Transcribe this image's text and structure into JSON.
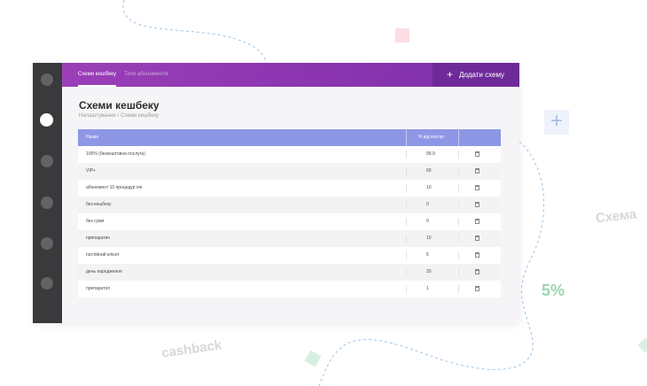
{
  "topbar": {
    "tabs": [
      {
        "label": "Схеми кешбеку",
        "active": true
      },
      {
        "label": "Типи абонементів",
        "active": false
      }
    ],
    "add_button_label": "Додати схему",
    "gradient_colors": [
      "#9a3fb7",
      "#7b2fa8"
    ]
  },
  "page": {
    "title": "Схеми кешбеку",
    "breadcrumbs": [
      "Налаштування",
      "Схеми кешбеку"
    ],
    "breadcrumb_separator": "/"
  },
  "table": {
    "headers": {
      "name": "Назва",
      "percent": "% від послуг"
    },
    "header_color": "#8e97e6",
    "rows": [
      {
        "name": "100% (безкоштовна послуга)",
        "percent": "99.9"
      },
      {
        "name": "VIP+",
        "percent": "60"
      },
      {
        "name": "абонемент 10 процедур очі",
        "percent": "10"
      },
      {
        "name": "без кешбеку",
        "percent": "0"
      },
      {
        "name": "без суми",
        "percent": "0"
      },
      {
        "name": "препаратин",
        "percent": "10"
      },
      {
        "name": "постійний клієнт",
        "percent": "5"
      },
      {
        "name": "день народження",
        "percent": "20"
      },
      {
        "name": "препаратол",
        "percent": "1"
      }
    ]
  },
  "sidebar": {
    "items": [
      "nav-1",
      "nav-2",
      "nav-3",
      "nav-4",
      "nav-5",
      "nav-6",
      "nav-7"
    ],
    "active_index": 1
  },
  "background": {
    "word_schema": "Схема",
    "word_percent": "5%",
    "word_cashback": "cashback"
  }
}
